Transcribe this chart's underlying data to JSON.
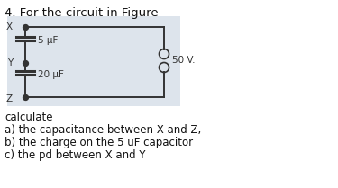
{
  "title": "4. For the circuit in Figure",
  "bg_color": "#ffffff",
  "circuit_bg": "#dde4ec",
  "text_lines": [
    "calculate",
    "a) the capacitance between X and Z,",
    "b) the charge on the 5 uF capacitor",
    "c) the pd between X and Y"
  ],
  "cap1_label": "5 μF",
  "cap2_label": "20 μF",
  "voltage_label": "50 V.",
  "font_size_title": 9.5,
  "font_size_body": 8.5,
  "font_size_label": 7.5
}
